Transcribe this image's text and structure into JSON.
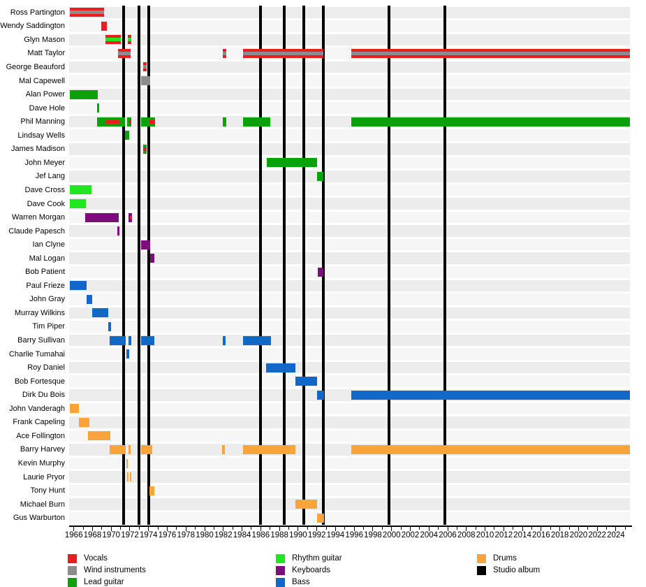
{
  "chart_data": {
    "type": "bar",
    "subtype": "band-membership-timeline",
    "title": "",
    "legend_position": "bottom",
    "x_axis": {
      "domain": [
        1965.5,
        2025.5
      ],
      "tick_start": 1966,
      "tick_end": 2024,
      "tick_step": 2,
      "minor_tick_step": 1
    },
    "colors": {
      "vocals": "#ed1c24",
      "wind_instruments": "#8c8c8c",
      "lead_guitar": "#0aa10a",
      "rhythm_guitar": "#1fe81f",
      "keyboards": "#7d0c7d",
      "bass": "#1268c8",
      "drums": "#f8a43a",
      "studio_album": "#000000",
      "row_stripe_a": "#ececec",
      "row_stripe_b": "#f6f6f6"
    },
    "legend": {
      "columns": [
        {
          "items": [
            {
              "label": "Vocals",
              "role": "vocals"
            },
            {
              "label": "Wind instruments",
              "role": "wind_instruments"
            },
            {
              "label": "Lead guitar",
              "role": "lead_guitar"
            }
          ]
        },
        {
          "items": [
            {
              "label": "Rhythm guitar",
              "role": "rhythm_guitar"
            },
            {
              "label": "Keyboards",
              "role": "keyboards"
            },
            {
              "label": "Bass",
              "role": "bass"
            }
          ]
        },
        {
          "items": [
            {
              "label": "Drums",
              "role": "drums"
            },
            {
              "label": "Studio album",
              "role": "studio_album"
            }
          ]
        }
      ]
    },
    "albums": [
      1971.35,
      1972.95,
      1974.05,
      1986.0,
      1988.5,
      1990.6,
      1992.7,
      1999.7,
      2005.7
    ],
    "members": [
      {
        "name": "Ross Partington",
        "segments": [
          {
            "from": 1965.6,
            "to": 1969.2,
            "role": "vocals",
            "stripe": {
              "role": "wind_instruments"
            }
          }
        ]
      },
      {
        "name": "Wendy Saddington",
        "segments": [
          {
            "from": 1968.95,
            "to": 1969.5,
            "role": "vocals"
          }
        ]
      },
      {
        "name": "Glyn Mason",
        "segments": [
          {
            "from": 1969.4,
            "to": 1971.0,
            "role": "vocals",
            "stripe": {
              "role": "rhythm_guitar"
            }
          },
          {
            "from": 1971.8,
            "to": 1972.15,
            "role": "vocals",
            "stripe": {
              "role": "rhythm_guitar"
            }
          }
        ]
      },
      {
        "name": "Matt Taylor",
        "segments": [
          {
            "from": 1970.7,
            "to": 1972.1,
            "role": "vocals",
            "stripe": {
              "role": "wind_instruments"
            }
          },
          {
            "from": 1981.95,
            "to": 1982.35,
            "role": "vocals",
            "stripe": {
              "role": "wind_instruments"
            }
          },
          {
            "from": 1984.1,
            "to": 1992.7,
            "role": "vocals",
            "stripe": {
              "role": "wind_instruments"
            }
          },
          {
            "from": 1995.7,
            "to": 2025.5,
            "role": "vocals",
            "stripe": {
              "role": "wind_instruments"
            }
          }
        ]
      },
      {
        "name": "George Beauford",
        "segments": [
          {
            "from": 1973.4,
            "to": 1973.8,
            "role": "vocals",
            "stripe": {
              "role": "wind_instruments"
            }
          }
        ]
      },
      {
        "name": "Mal Capewell",
        "segments": [
          {
            "from": 1973.2,
            "to": 1974.2,
            "role": "wind_instruments"
          }
        ]
      },
      {
        "name": "Alan Power",
        "segments": [
          {
            "from": 1965.6,
            "to": 1968.6,
            "role": "lead_guitar"
          }
        ]
      },
      {
        "name": "Dave Hole",
        "segments": [
          {
            "from": 1968.5,
            "to": 1968.75,
            "role": "lead_guitar"
          }
        ]
      },
      {
        "name": "Phil Manning",
        "segments": [
          {
            "from": 1968.5,
            "to": 1971.5,
            "role": "lead_guitar",
            "stripe": {
              "role": "vocals",
              "from": 1969.45,
              "to": 1970.9
            }
          },
          {
            "from": 1971.7,
            "to": 1972.15,
            "role": "lead_guitar",
            "stripe": {
              "role": "vocals",
              "from": 1971.92,
              "to": 1972.15
            }
          },
          {
            "from": 1973.2,
            "to": 1974.7,
            "role": "lead_guitar",
            "stripe": {
              "role": "vocals",
              "from": 1974.0,
              "to": 1974.7
            }
          },
          {
            "from": 1981.95,
            "to": 1982.3,
            "role": "lead_guitar"
          },
          {
            "from": 1984.1,
            "to": 1987.05,
            "role": "lead_guitar"
          },
          {
            "from": 1995.7,
            "to": 2025.5,
            "role": "lead_guitar"
          }
        ]
      },
      {
        "name": "Lindsay Wells",
        "segments": [
          {
            "from": 1971.5,
            "to": 1971.95,
            "role": "lead_guitar"
          }
        ]
      },
      {
        "name": "James Madison",
        "segments": [
          {
            "from": 1973.4,
            "to": 1973.8,
            "role": "lead_guitar",
            "stripe": {
              "role": "vocals"
            }
          }
        ]
      },
      {
        "name": "John Meyer",
        "segments": [
          {
            "from": 1986.65,
            "to": 1992.0,
            "role": "lead_guitar"
          }
        ]
      },
      {
        "name": "Jef Lang",
        "segments": [
          {
            "from": 1992.0,
            "to": 1992.7,
            "role": "lead_guitar"
          }
        ]
      },
      {
        "name": "Dave Cross",
        "segments": [
          {
            "from": 1965.6,
            "to": 1967.9,
            "role": "rhythm_guitar"
          }
        ]
      },
      {
        "name": "Dave Cook",
        "segments": [
          {
            "from": 1965.6,
            "to": 1967.3,
            "role": "rhythm_guitar"
          }
        ]
      },
      {
        "name": "Warren Morgan",
        "segments": [
          {
            "from": 1967.2,
            "to": 1970.8,
            "role": "keyboards"
          },
          {
            "from": 1971.85,
            "to": 1972.25,
            "role": "keyboards",
            "stripe": {
              "role": "vocals",
              "from": 1972.02,
              "to": 1972.25
            }
          }
        ]
      },
      {
        "name": "Claude Papesch",
        "segments": [
          {
            "from": 1970.65,
            "to": 1970.9,
            "role": "keyboards"
          }
        ]
      },
      {
        "name": "Ian Clyne",
        "segments": [
          {
            "from": 1973.2,
            "to": 1974.2,
            "role": "keyboards"
          }
        ]
      },
      {
        "name": "Mal Logan",
        "segments": [
          {
            "from": 1974.2,
            "to": 1974.65,
            "role": "keyboards"
          }
        ]
      },
      {
        "name": "Bob Patient",
        "segments": [
          {
            "from": 1992.1,
            "to": 1992.7,
            "role": "keyboards"
          }
        ]
      },
      {
        "name": "Paul Frieze",
        "segments": [
          {
            "from": 1965.6,
            "to": 1967.4,
            "role": "bass"
          }
        ]
      },
      {
        "name": "John Gray",
        "segments": [
          {
            "from": 1967.4,
            "to": 1967.95,
            "role": "bass"
          }
        ]
      },
      {
        "name": "Murray Wilkins",
        "segments": [
          {
            "from": 1967.95,
            "to": 1969.7,
            "role": "bass"
          }
        ]
      },
      {
        "name": "Tim Piper",
        "segments": [
          {
            "from": 1969.7,
            "to": 1969.96,
            "role": "bass"
          }
        ]
      },
      {
        "name": "Barry Sullivan",
        "segments": [
          {
            "from": 1969.85,
            "to": 1971.55,
            "role": "bass"
          },
          {
            "from": 1971.85,
            "to": 1972.15,
            "role": "bass"
          },
          {
            "from": 1973.2,
            "to": 1974.6,
            "role": "bass"
          },
          {
            "from": 1981.95,
            "to": 1982.25,
            "role": "bass"
          },
          {
            "from": 1984.1,
            "to": 1987.1,
            "role": "bass"
          }
        ]
      },
      {
        "name": "Charlie Tumahai",
        "segments": [
          {
            "from": 1971.6,
            "to": 1971.95,
            "role": "bass"
          }
        ]
      },
      {
        "name": "Roy Daniel",
        "segments": [
          {
            "from": 1986.55,
            "to": 1989.7,
            "role": "bass"
          }
        ]
      },
      {
        "name": "Bob Fortesque",
        "segments": [
          {
            "from": 1989.7,
            "to": 1992.0,
            "role": "bass"
          }
        ]
      },
      {
        "name": "Dirk Du Bois",
        "segments": [
          {
            "from": 1992.0,
            "to": 1992.75,
            "role": "bass"
          },
          {
            "from": 1995.7,
            "to": 2025.5,
            "role": "bass"
          }
        ]
      },
      {
        "name": "John Vanderagh",
        "segments": [
          {
            "from": 1965.6,
            "to": 1966.55,
            "role": "drums"
          }
        ]
      },
      {
        "name": "Frank Capeling",
        "segments": [
          {
            "from": 1966.55,
            "to": 1967.65,
            "role": "drums"
          }
        ]
      },
      {
        "name": "Ace Follington",
        "segments": [
          {
            "from": 1967.5,
            "to": 1969.9,
            "role": "drums"
          }
        ]
      },
      {
        "name": "Barry Harvey",
        "segments": [
          {
            "from": 1969.85,
            "to": 1971.55,
            "role": "drums"
          },
          {
            "from": 1971.85,
            "to": 1972.1,
            "role": "drums"
          },
          {
            "from": 1973.2,
            "to": 1974.4,
            "role": "drums"
          },
          {
            "from": 1981.9,
            "to": 1982.2,
            "role": "drums"
          },
          {
            "from": 1984.1,
            "to": 1989.7,
            "role": "drums"
          },
          {
            "from": 1995.7,
            "to": 2025.5,
            "role": "drums"
          }
        ]
      },
      {
        "name": "Kevin Murphy",
        "segments": [
          {
            "from": 1971.6,
            "to": 1971.8,
            "role": "drums"
          }
        ]
      },
      {
        "name": "Laurie Pryor",
        "segments": [
          {
            "from": 1971.7,
            "to": 1971.88,
            "role": "drums"
          },
          {
            "from": 1972.0,
            "to": 1972.18,
            "role": "drums"
          }
        ]
      },
      {
        "name": "Tony Hunt",
        "segments": [
          {
            "from": 1974.1,
            "to": 1974.65,
            "role": "drums"
          }
        ]
      },
      {
        "name": "Michael Burn",
        "segments": [
          {
            "from": 1989.7,
            "to": 1992.0,
            "role": "drums"
          }
        ]
      },
      {
        "name": "Gus Warburton",
        "segments": [
          {
            "from": 1992.0,
            "to": 1992.75,
            "role": "drums"
          }
        ]
      }
    ]
  }
}
